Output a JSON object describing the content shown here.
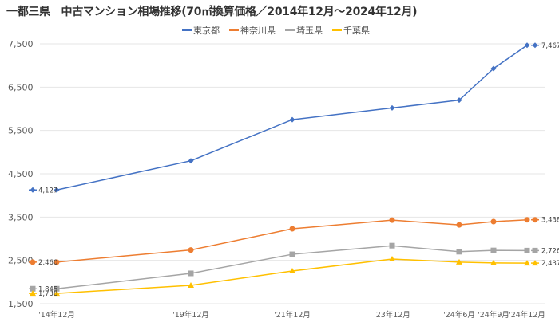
{
  "chart_data": {
    "type": "line",
    "title": "一都三県　中古マンション相場推移(70㎡換算価格／2014年12月～2024年12月)",
    "categories": [
      "'14年12月",
      "'19年12月",
      "'21年12月",
      "'23年12月",
      "'24年6月",
      "'24年9月",
      "'24年12月"
    ],
    "ylim": [
      1500,
      7500
    ],
    "yticks": [
      "1,500",
      "2,500",
      "3,500",
      "4,500",
      "5,500",
      "6,500",
      "7,500"
    ],
    "grid": true,
    "legend": "top",
    "series": [
      {
        "name": "東京都",
        "color": "#4472C4",
        "marker": "diamond",
        "values": [
          4127,
          4800,
          5750,
          6020,
          6200,
          6930,
          7467
        ],
        "start_label": "4,127",
        "end_label": "7,467"
      },
      {
        "name": "神奈川県",
        "color": "#ED7D31",
        "marker": "circle",
        "values": [
          2460,
          2740,
          3230,
          3430,
          3320,
          3395,
          3438
        ],
        "start_label": "2,460",
        "end_label": "3,438"
      },
      {
        "name": "埼玉県",
        "color": "#A5A5A5",
        "marker": "square",
        "values": [
          1845,
          2200,
          2640,
          2840,
          2700,
          2730,
          2726
        ],
        "start_label": "1,845",
        "end_label": "2,726"
      },
      {
        "name": "千葉県",
        "color": "#FFC000",
        "marker": "triangle",
        "values": [
          1738,
          1924,
          2255,
          2530,
          2460,
          2440,
          2437
        ],
        "start_label": "1,738",
        "end_label": "2,437"
      }
    ]
  }
}
